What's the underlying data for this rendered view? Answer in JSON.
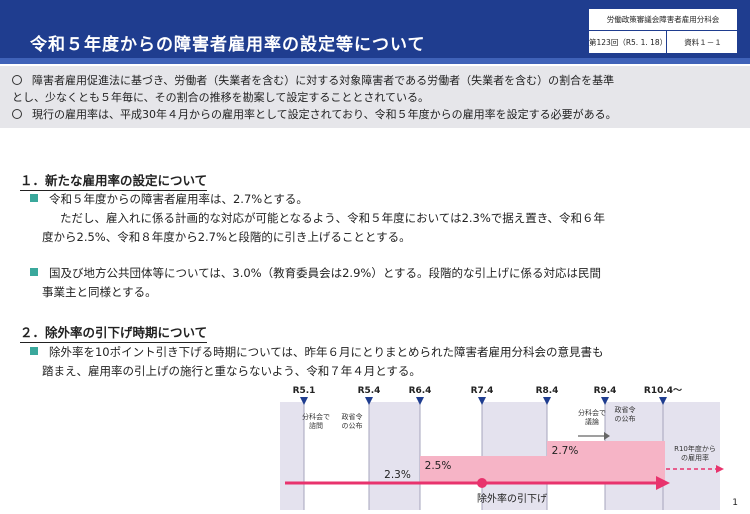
{
  "header": {
    "title": "令和５年度からの障害者雇用率の設定等について",
    "org": "労働政策審議会障害者雇用分科会",
    "session": "第123回（R5. 1. 18）",
    "doc_ref": "資料１－１"
  },
  "summary": {
    "line1": "障害者雇用促進法に基づき、労働者（失業者を含む）に対する対象障害者である労働者（失業者を含む）の割合を基準",
    "line2": "とし、少なくとも５年毎に、その割合の推移を勘案して設定することとされている。",
    "line3": "現行の雇用率は、平成30年４月からの雇用率として設定されており、令和５年度からの雇用率を設定する必要がある。"
  },
  "section1": {
    "title": "１．新たな雇用率の設定について",
    "p1_line1": "令和５年度からの障害者雇用率は、2.7%とする。",
    "p1_line2": "ただし、雇入れに係る計画的な対応が可能となるよう、令和５年度においては2.3%で据え置き、令和６年",
    "p1_line3": "度から2.5%、令和８年度から2.7%と段階的に引き上げることとする。",
    "p2_line1": "国及び地方公共団体等については、3.0%（教育委員会は2.9%）とする。段階的な引上げに係る対応は民間",
    "p2_line2": "事業主と同様とする。"
  },
  "section2": {
    "title": "２．除外率の引下げ時期について",
    "p1_line1": "除外率を10ポイント引き下げる時期については、昨年６月にとりまとめられた障害者雇用分科会の意見書も",
    "p1_line2": "踏まえ、雇用率の引上げの施行と重ならないよう、令和７年４月とする。"
  },
  "timeline": {
    "marks": [
      {
        "label": "R5.1",
        "month": "2023-01"
      },
      {
        "label": "R5.4",
        "month": "2023-04"
      },
      {
        "label": "R6.4",
        "month": "2024-04"
      },
      {
        "label": "R7.4",
        "month": "2025-04"
      },
      {
        "label": "R8.4",
        "month": "2026-04"
      },
      {
        "label": "R9.4",
        "month": "2027-04"
      },
      {
        "label": "R10.4～",
        "month": "2028-04"
      }
    ],
    "notes": {
      "bunkakai": "分科会で\n諮問",
      "seirei1": "政省令\nの公布",
      "bunkakai2": "分科会で\n議論",
      "seirei2": "政省令\nの公布",
      "future": "R10年度から\nの雇用率"
    },
    "rates": [
      {
        "value": "2.3%",
        "from": "R5.4",
        "to": "R6.4"
      },
      {
        "value": "2.5%",
        "from": "R6.4",
        "to": "R8.4"
      },
      {
        "value": "2.7%",
        "from": "R8.4",
        "to": "R10.4～"
      }
    ],
    "exclusion_label": "除外率の引下げ",
    "exclusion_date": "R7.4",
    "colors": {
      "arrow": "#e8336d",
      "step_fill": "#f6b4c6",
      "band_fill": "#e4e2ee",
      "marker": "#1f3d8f"
    }
  },
  "page_number": "1"
}
